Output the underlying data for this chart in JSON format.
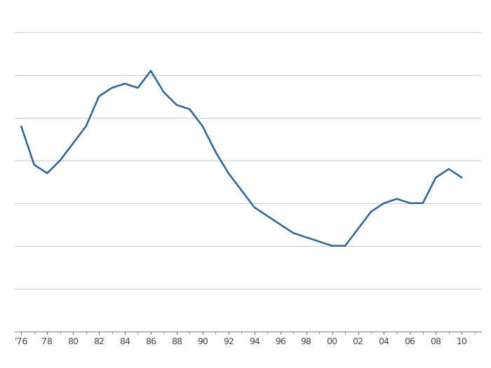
{
  "x_years": [
    1976,
    1977,
    1978,
    1979,
    1980,
    1981,
    1982,
    1983,
    1984,
    1985,
    1986,
    1987,
    1988,
    1989,
    1990,
    1991,
    1992,
    1993,
    1994,
    1995,
    1996,
    1997,
    1998,
    1999,
    2000,
    2001,
    2002,
    2003,
    2004,
    2005,
    2006,
    2007,
    2008,
    2009,
    2010
  ],
  "y_values": [
    5.8,
    4.9,
    4.7,
    5.0,
    5.4,
    5.8,
    6.5,
    6.7,
    6.8,
    6.7,
    7.1,
    6.6,
    6.3,
    6.2,
    5.8,
    5.2,
    4.7,
    4.3,
    3.9,
    3.7,
    3.5,
    3.3,
    3.2,
    3.1,
    3.0,
    3.0,
    3.4,
    3.8,
    4.0,
    4.1,
    4.0,
    4.0,
    4.6,
    4.8,
    4.6
  ],
  "line_color": "#2a6496",
  "line_width": 1.8,
  "background_color": "#ffffff",
  "plot_bg_color": "#ffffff",
  "grid_color": "#cccccc",
  "tick_label_color": "#444444",
  "xlim": [
    1975.5,
    2011.5
  ],
  "ylim": [
    1.0,
    8.5
  ],
  "grid_y_values": [
    2.0,
    3.0,
    4.0,
    5.0,
    6.0,
    7.0,
    8.0
  ],
  "xlabel_ticks": [
    "'76",
    "78",
    "80",
    "82",
    "84",
    "86",
    "88",
    "90",
    "92",
    "94",
    "96",
    "98",
    "00",
    "02",
    "04",
    "06",
    "08",
    "10"
  ],
  "xlabel_tick_positions": [
    1976,
    1978,
    1980,
    1982,
    1984,
    1986,
    1988,
    1990,
    1992,
    1994,
    1996,
    1998,
    2000,
    2002,
    2004,
    2006,
    2008,
    2010
  ]
}
